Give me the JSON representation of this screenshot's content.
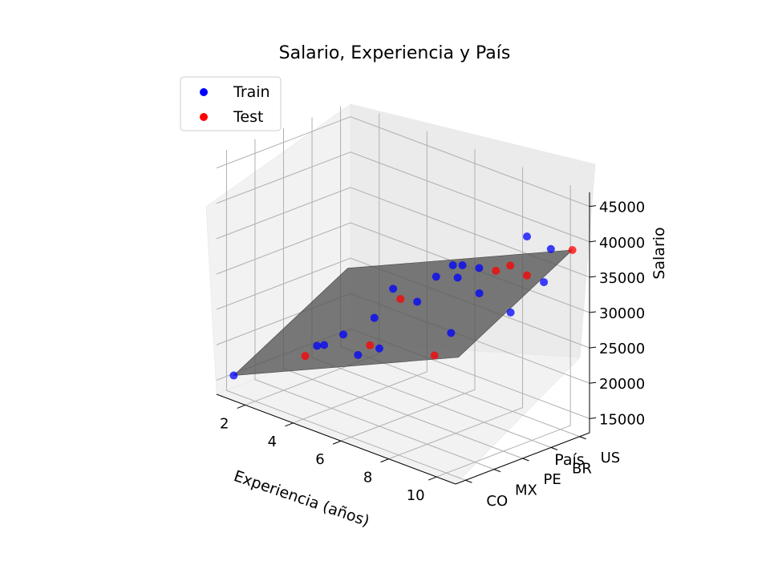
{
  "chart_data": {
    "type": "scatter",
    "title": "Salario, Experiencia y País",
    "xlabel": "Experiencia (años)",
    "ylabel": "País",
    "zlabel": "Salario",
    "x_ticks": [
      "2",
      "4",
      "6",
      "8",
      "10"
    ],
    "y_ticks": [
      "CO",
      "MX",
      "PE",
      "BR",
      "US"
    ],
    "z_ticks": [
      "15000",
      "20000",
      "25000",
      "30000",
      "35000",
      "40000",
      "45000"
    ],
    "legend": {
      "position": "top-left",
      "entries": [
        {
          "label": "Train",
          "color": "#0000ff"
        },
        {
          "label": "Test",
          "color": "#ff0000"
        }
      ]
    },
    "grid": true,
    "series": [
      {
        "name": "Train",
        "color": "#0000ff",
        "points": [
          {
            "x": 1.1,
            "country": "CO",
            "salario": 15500
          },
          {
            "x": 2.2,
            "country": "PE",
            "salario": 18000
          },
          {
            "x": 2.5,
            "country": "PE",
            "salario": 18500
          },
          {
            "x": 3.0,
            "country": "US",
            "salario": 24000
          },
          {
            "x": 3.3,
            "country": "PE",
            "salario": 21000
          },
          {
            "x": 4.6,
            "country": "PE",
            "salario": 25000
          },
          {
            "x": 4.8,
            "country": "US",
            "salario": 28000
          },
          {
            "x": 5.2,
            "country": "BR",
            "salario": 26500
          },
          {
            "x": 5.7,
            "country": "US",
            "salario": 29000
          },
          {
            "x": 5.5,
            "country": "US",
            "salario": 30500
          },
          {
            "x": 6.0,
            "country": "MX",
            "salario": 24000
          },
          {
            "x": 6.3,
            "country": "CO",
            "salario": 25000
          },
          {
            "x": 5.9,
            "country": "US",
            "salario": 31000
          },
          {
            "x": 6.6,
            "country": "US",
            "salario": 31500
          },
          {
            "x": 7.8,
            "country": "BR",
            "salario": 31000
          },
          {
            "x": 9.0,
            "country": "MX",
            "salario": 30000
          },
          {
            "x": 9.6,
            "country": "US",
            "salario": 38000
          },
          {
            "x": 8.6,
            "country": "US",
            "salario": 38500
          },
          {
            "x": 10.5,
            "country": "BR",
            "salario": 36000
          },
          {
            "x": 10.3,
            "country": "PE",
            "salario": 33000
          }
        ]
      },
      {
        "name": "Test",
        "color": "#ff0000",
        "points": [
          {
            "x": 2.9,
            "country": "MX",
            "salario": 19000
          },
          {
            "x": 4.5,
            "country": "BR",
            "salario": 26000
          },
          {
            "x": 6.8,
            "country": "CO",
            "salario": 27000
          },
          {
            "x": 7.3,
            "country": "US",
            "salario": 32000
          },
          {
            "x": 7.9,
            "country": "US",
            "salario": 33500
          },
          {
            "x": 8.6,
            "country": "US",
            "salario": 33000
          },
          {
            "x": 9.5,
            "country": "CO",
            "salario": 29000
          },
          {
            "x": 10.5,
            "country": "US",
            "salario": 39000
          }
        ]
      }
    ],
    "regression_plane": {
      "color": "#555555",
      "corners": [
        {
          "x": 1.1,
          "country": "CO",
          "salario": 15500
        },
        {
          "x": 10.5,
          "country": "CO",
          "salario": 30000
        },
        {
          "x": 10.5,
          "country": "US",
          "salario": 39000
        },
        {
          "x": 1.1,
          "country": "US",
          "salario": 24500
        }
      ]
    }
  }
}
